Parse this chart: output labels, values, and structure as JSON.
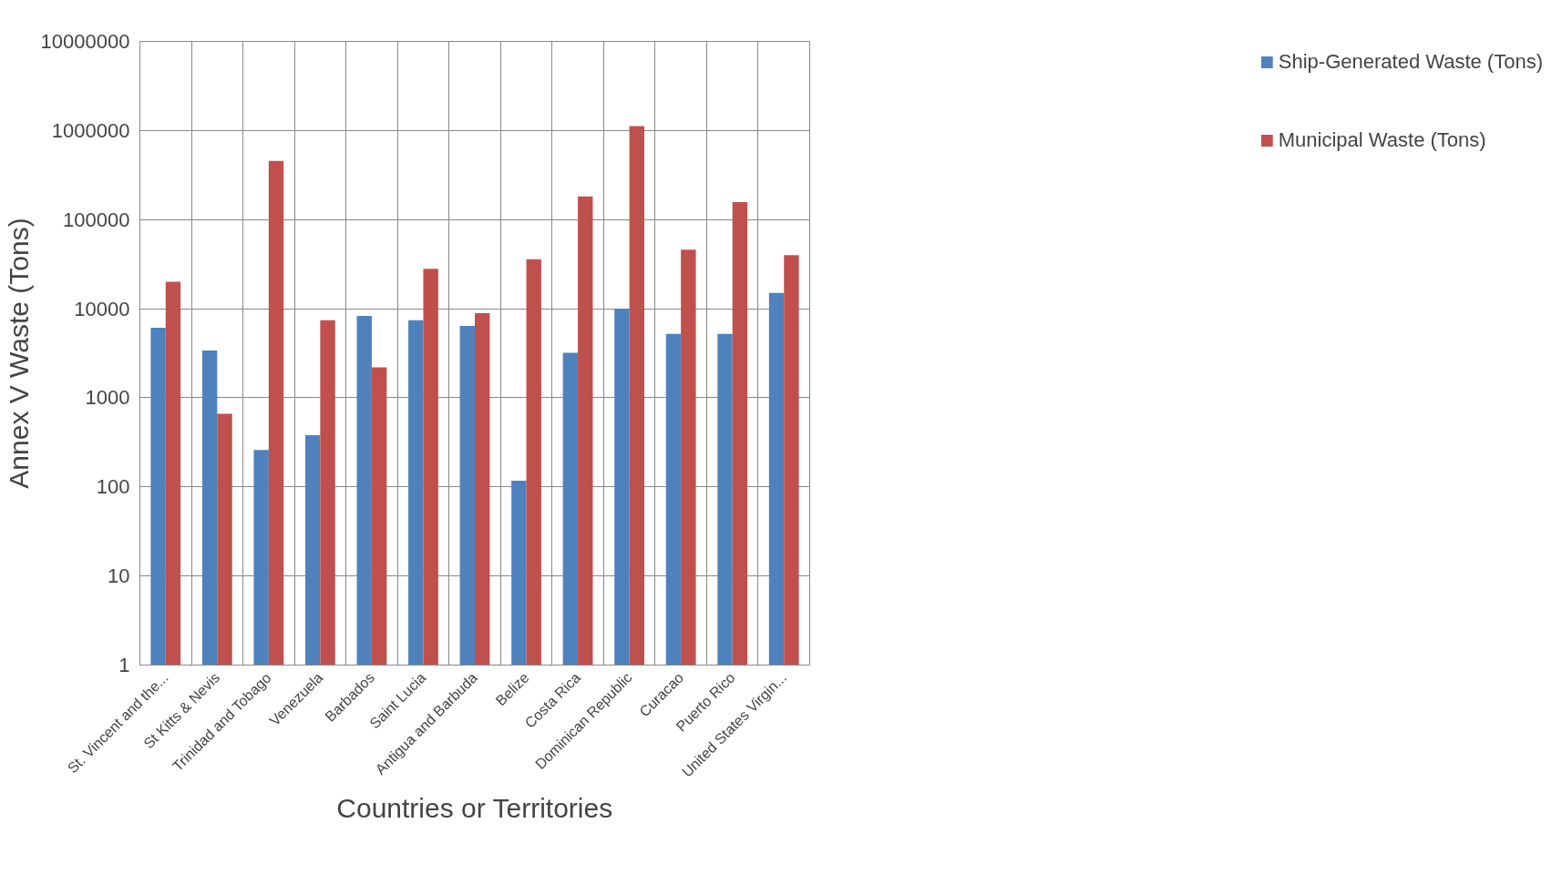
{
  "chart_data": {
    "type": "bar",
    "xlabel": "Countries or Territories",
    "ylabel": "Annex V Waste (Tons)",
    "categories": [
      "St. Vincent and the...",
      "St Kitts & Nevis",
      "Trinidad and Tobago",
      "Venezuela",
      "Barbados",
      "Saint Lucia",
      "Antigua and Barbuda",
      "Belize",
      "Costa Rica",
      "Dominican Republic",
      "Curacao",
      "Puerto Rico",
      "United States Virgin..."
    ],
    "series": [
      {
        "name": "Ship-Generated Waste (Tons)",
        "color": "#4f81bd",
        "values": [
          6100,
          3400,
          260,
          380,
          8300,
          7400,
          6400,
          117,
          3200,
          10000,
          5200,
          5200,
          15000
        ]
      },
      {
        "name": "Municipal Waste (Tons)",
        "color": "#c0504d",
        "values": [
          20000,
          660,
          455000,
          7400,
          2200,
          28000,
          8900,
          36000,
          182000,
          1120000,
          46000,
          157000,
          40000
        ]
      }
    ],
    "log": "y",
    "ylim": [
      1,
      10000000
    ],
    "yticks": [
      1,
      10,
      100,
      1000,
      10000,
      100000,
      1000000,
      10000000
    ],
    "grid": true,
    "legend": "right"
  }
}
